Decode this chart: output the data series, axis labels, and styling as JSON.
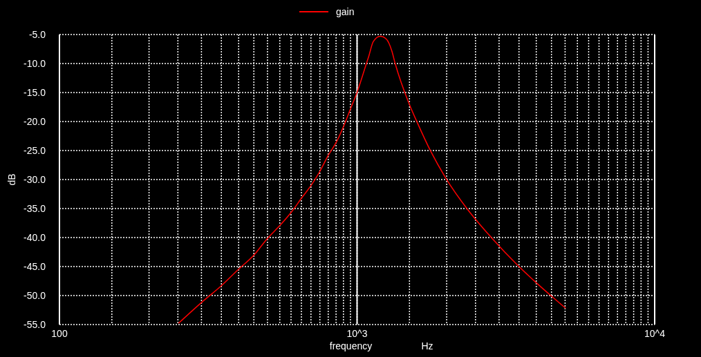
{
  "chart_data": {
    "type": "line",
    "xlabel": "frequency",
    "ylabel": "dB",
    "annotations": [
      "Hz"
    ],
    "log": "x",
    "grid": true,
    "legend": "top",
    "line_style": "solid",
    "marker": "none",
    "ref_lines": [
      {
        "axis": "x",
        "value": 1000,
        "color": "#ffffff",
        "line_style": "solid"
      }
    ],
    "xlim": [
      100,
      10000
    ],
    "ylim": [
      -55,
      -5
    ],
    "xticks": [
      100,
      {
        "value": 150,
        "label": null
      },
      {
        "value": 200,
        "label": null
      },
      {
        "value": 250,
        "label": null
      },
      {
        "value": 300,
        "label": null
      },
      {
        "value": 350,
        "label": null
      },
      {
        "value": 400,
        "label": null
      },
      {
        "value": 450,
        "label": null
      },
      {
        "value": 500,
        "label": null
      },
      {
        "value": 550,
        "label": null
      },
      {
        "value": 600,
        "label": null
      },
      {
        "value": 650,
        "label": null
      },
      {
        "value": 700,
        "label": null
      },
      {
        "value": 750,
        "label": null
      },
      {
        "value": 800,
        "label": null
      },
      {
        "value": 850,
        "label": null
      },
      {
        "value": 900,
        "label": null
      },
      {
        "value": 950,
        "label": null
      },
      {
        "value": 1000,
        "label": "10^3"
      },
      {
        "value": 1500,
        "label": null
      },
      {
        "value": 2000,
        "label": null
      },
      {
        "value": 2500,
        "label": null
      },
      {
        "value": 3000,
        "label": null
      },
      {
        "value": 3500,
        "label": null
      },
      {
        "value": 4000,
        "label": null
      },
      {
        "value": 4500,
        "label": null
      },
      {
        "value": 5000,
        "label": null
      },
      {
        "value": 5500,
        "label": null
      },
      {
        "value": 6000,
        "label": null
      },
      {
        "value": 6500,
        "label": null
      },
      {
        "value": 7000,
        "label": null
      },
      {
        "value": 7500,
        "label": null
      },
      {
        "value": 8000,
        "label": null
      },
      {
        "value": 8500,
        "label": null
      },
      {
        "value": 9000,
        "label": null
      },
      {
        "value": 9500,
        "label": null
      },
      {
        "value": 10000,
        "label": "10^4"
      }
    ],
    "yticks": [
      {
        "value": -5,
        "label": "-5.0"
      },
      {
        "value": -10,
        "label": "-10.0"
      },
      {
        "value": -15,
        "label": "-15.0"
      },
      {
        "value": -20,
        "label": "-20.0"
      },
      {
        "value": -25,
        "label": "-25.0"
      },
      {
        "value": -30,
        "label": "-30.0"
      },
      {
        "value": -35,
        "label": "-35.0"
      },
      {
        "value": -40,
        "label": "-40.0"
      },
      {
        "value": -45,
        "label": "-45.0"
      },
      {
        "value": -50,
        "label": "-50.0"
      },
      {
        "value": -55,
        "label": "-55.0"
      }
    ],
    "series": [
      {
        "name": "gain",
        "color": "#ff0000",
        "x": [
          251,
          300,
          350,
          403,
          449,
          499,
          551,
          602,
          653,
          701,
          746,
          801,
          853,
          900,
          949,
          1001,
          1075,
          1094,
          1134,
          1196,
          1255,
          1308,
          1343,
          1495,
          1591,
          1771,
          1989,
          2356,
          2815,
          3486,
          4022,
          4477,
          5024
        ],
        "values": [
          -54.8,
          -51.2,
          -48.3,
          -45.3,
          -43.1,
          -40.2,
          -37.9,
          -35.6,
          -33.1,
          -31.0,
          -28.8,
          -25.8,
          -23.5,
          -20.9,
          -17.9,
          -14.9,
          -10.0,
          -8.8,
          -6.2,
          -5.3,
          -5.8,
          -7.8,
          -10.0,
          -16.9,
          -20.1,
          -25.2,
          -29.8,
          -35.2,
          -39.9,
          -44.9,
          -47.9,
          -50.0,
          -52.2
        ]
      }
    ]
  }
}
